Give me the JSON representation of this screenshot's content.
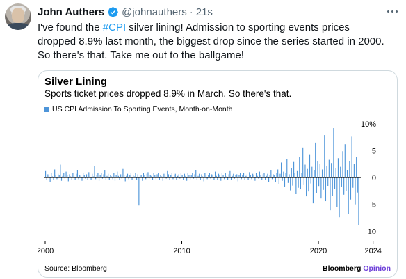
{
  "tweet": {
    "author_name": "John Authers",
    "handle": "@johnauthers",
    "separator": "·",
    "time": "21s",
    "text_part1": "I've found the ",
    "hashtag": "#CPI",
    "text_part2": " silver lining! Admission to sporting  events prices dropped 8.9% last month, the biggest drop since the series started in 2000.  So there's that. Take me out to the ballgame!"
  },
  "card": {
    "title": "Silver Lining",
    "subtitle": "Sports ticket prices dropped 8.9% in March. So there's that.",
    "source": "Source: Bloomberg",
    "brand_main": "Bloomberg",
    "brand_accent": "Opinion"
  },
  "colors": {
    "bar": "#4e95d9",
    "link": "#1d9bf0",
    "verified": "#1d9bf0",
    "brand_accent": "#6d3fd8"
  },
  "icons": {
    "verified": "verified-badge-icon",
    "more": "more-horizontal-icon"
  },
  "chart_data": {
    "type": "bar",
    "series_name": "US CPI Admission To Sporting Events, Month-on-Month",
    "x_start": 2000,
    "x_step_months": 1,
    "x_ticks": [
      2000,
      2010,
      2020,
      2024
    ],
    "x_tick_labels": [
      "2000",
      "2010",
      "2020",
      "2024"
    ],
    "y_ticks": [
      10,
      5,
      0,
      -5,
      -10
    ],
    "y_tick_labels": [
      "10%",
      "5",
      "0",
      "-5",
      "-10"
    ],
    "ylim": [
      -11,
      10.5
    ],
    "baseline": 0,
    "grid": false,
    "values": [
      1.2,
      -0.4,
      0.6,
      0.3,
      -0.8,
      0.9,
      0.2,
      -0.5,
      1.5,
      0.4,
      -0.3,
      0.7,
      0.5,
      2.4,
      -0.6,
      0.3,
      0.8,
      -0.2,
      1.1,
      0.4,
      -0.7,
      0.6,
      0.2,
      -0.4,
      0.9,
      0.3,
      -0.5,
      0.7,
      1.4,
      -0.3,
      0.5,
      0.2,
      -0.6,
      0.8,
      0.4,
      -0.2,
      0.6,
      -0.4,
      1.0,
      0.3,
      -0.5,
      0.7,
      0.2,
      2.2,
      -0.3,
      0.5,
      0.9,
      -0.6,
      0.4,
      0.8,
      -0.2,
      0.6,
      1.3,
      -0.5,
      0.3,
      0.7,
      -0.4,
      0.5,
      0.2,
      -0.3,
      0.8,
      -0.6,
      0.4,
      1.1,
      0.3,
      -0.4,
      0.6,
      -0.2,
      1.6,
      0.5,
      -0.7,
      0.3,
      0.7,
      -0.3,
      0.5,
      0.9,
      -0.5,
      0.4,
      0.2,
      0.8,
      -0.4,
      0.6,
      -5.2,
      0.3,
      0.5,
      -0.6,
      0.8,
      0.4,
      -0.3,
      0.7,
      1.0,
      -0.2,
      0.5,
      0.3,
      -0.5,
      0.9,
      0.4,
      -0.3,
      0.6,
      0.8,
      -0.4,
      0.5,
      0.2,
      -0.6,
      0.7,
      0.3,
      -0.2,
      1.2,
      0.6,
      -0.5,
      0.4,
      0.9,
      -0.3,
      0.5,
      0.7,
      -0.4,
      0.3,
      0.6,
      -0.2,
      0.8,
      0.5,
      -0.4,
      0.7,
      0.3,
      -0.6,
      0.9,
      0.4,
      -0.3,
      0.5,
      0.8,
      -0.2,
      0.6,
      1.4,
      -0.5,
      0.3,
      0.7,
      -0.4,
      0.6,
      0.2,
      -0.7,
      0.9,
      0.4,
      -0.3,
      0.5,
      0.8,
      -0.2,
      0.6,
      0.4,
      -0.5,
      1.1,
      0.3,
      -0.4,
      0.7,
      0.5,
      -0.6,
      0.8,
      0.4,
      -0.3,
      0.9,
      0.2,
      -0.5,
      0.6,
      1.2,
      -0.4,
      0.3,
      0.7,
      -0.2,
      0.5,
      0.6,
      -0.7,
      0.4,
      0.8,
      -0.3,
      0.5,
      0.9,
      -0.5,
      0.3,
      0.6,
      -0.4,
      1.0,
      0.5,
      -0.3,
      0.7,
      0.4,
      -0.6,
      0.8,
      0.3,
      -0.2,
      1.1,
      0.5,
      -0.5,
      0.6,
      0.9,
      -0.4,
      0.3,
      0.7,
      -0.8,
      0.5,
      1.3,
      -0.3,
      0.6,
      0.4,
      -0.9,
      0.8,
      1.5,
      -1.2,
      0.7,
      2.8,
      -0.6,
      1.1,
      -1.8,
      0.9,
      3.5,
      -1.0,
      0.6,
      -2.4,
      1.8,
      -1.5,
      2.9,
      0.8,
      -3.1,
      1.2,
      -1.9,
      3.8,
      -2.2,
      0.9,
      5.6,
      -1.4,
      2.4,
      -3.5,
      1.6,
      -2.6,
      4.2,
      -1.1,
      2.0,
      -4.8,
      1.3,
      6.5,
      -2.9,
      3.1,
      -1.7,
      2.6,
      -3.9,
      1.5,
      -2.3,
      7.9,
      -4.4,
      2.2,
      -1.6,
      3.3,
      -6.1,
      2.7,
      -3.4,
      9.2,
      -2.1,
      1.8,
      -5.5,
      3.6,
      -7.4,
      2.0,
      -1.8,
      4.9,
      -3.2,
      6.2,
      -2.5,
      1.4,
      -6.8,
      3.0,
      -4.1,
      7.6,
      -1.9,
      2.5,
      -5.0,
      3.8,
      -2.8,
      -8.9
    ]
  }
}
